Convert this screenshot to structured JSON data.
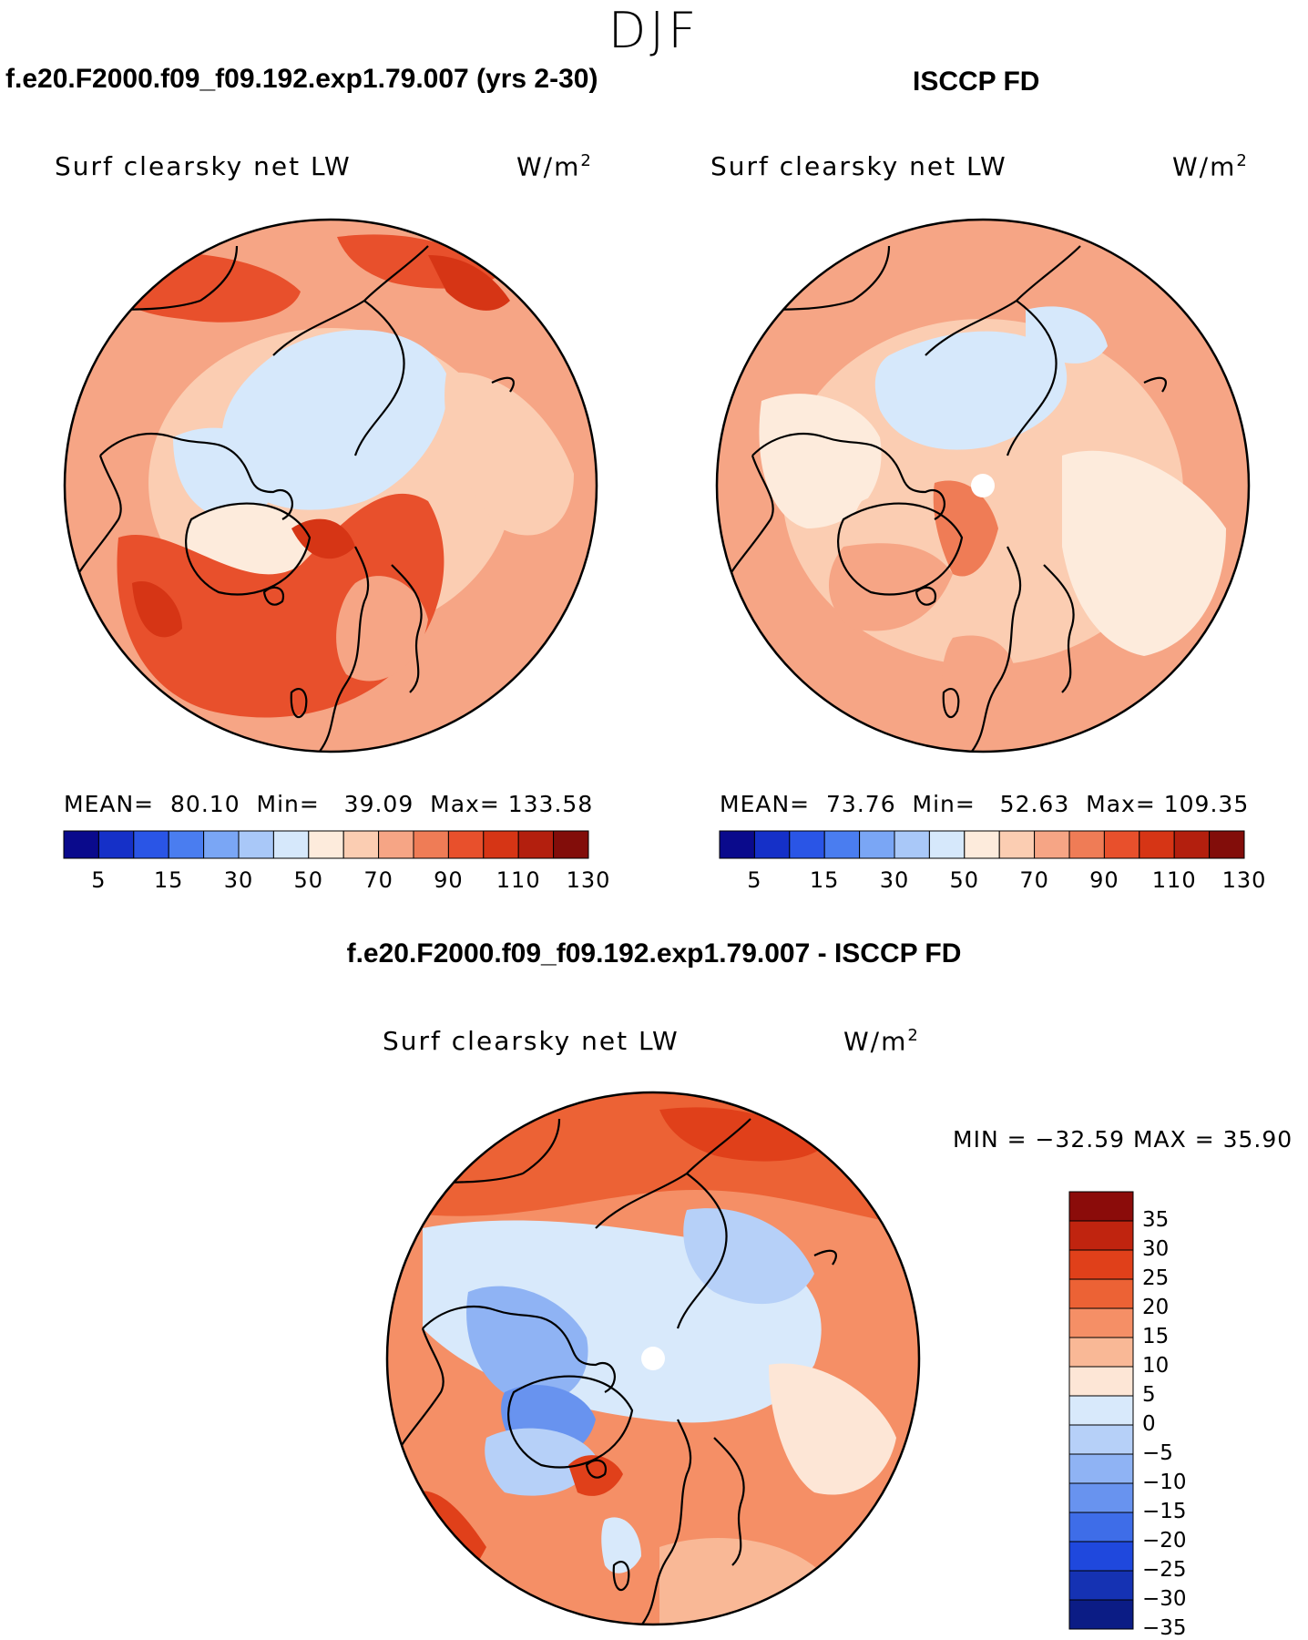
{
  "season": "DJF",
  "panels": [
    {
      "id": "model",
      "title": "f.e20.F2000.f09_f09.192.exp1.79.007 (yrs 2-30)",
      "variable": "Surf clearsky net LW",
      "units_base": "W/m",
      "units_exp": "2",
      "mean_label": "MEAN=",
      "mean_value": "80.10",
      "min_label": "Min=",
      "min_value": "39.09",
      "max_label": "Max=",
      "max_value": "133.58"
    },
    {
      "id": "obs",
      "title": "ISCCP FD",
      "variable": "Surf clearsky net LW",
      "units_base": "W/m",
      "units_exp": "2",
      "mean_label": "MEAN=",
      "mean_value": "73.76",
      "min_label": "Min=",
      "min_value": "52.63",
      "max_label": "Max=",
      "max_value": "109.35"
    }
  ],
  "field_colorbar": {
    "colors": [
      "#0a0a8c",
      "#1530c8",
      "#2a55e6",
      "#4a7df0",
      "#7aa6f5",
      "#a9c8f8",
      "#d6e8fb",
      "#fdebdc",
      "#fbcdb2",
      "#f6a585",
      "#ef7c56",
      "#e8502c",
      "#d63515",
      "#b31f0e",
      "#820d0a"
    ],
    "tick_labels": [
      "5",
      "15",
      "30",
      "50",
      "70",
      "90",
      "110",
      "130"
    ]
  },
  "diff_panel": {
    "title": "f.e20.F2000.f09_f09.192.exp1.79.007 - ISCCP FD",
    "variable": "Surf clearsky net LW",
    "units_base": "W/m",
    "units_exp": "2",
    "min_max_text": "MIN = −32.59 MAX =   35.90",
    "colorbar_labels": [
      "35",
      "30",
      "25",
      "20",
      "15",
      "10",
      "5",
      "0",
      "−5",
      "−10",
      "−15",
      "−20",
      "−25",
      "−30",
      "−35"
    ],
    "colorbar_colors": [
      "#8b0c0a",
      "#c0240f",
      "#e0401a",
      "#ec6235",
      "#f58f66",
      "#f9b896",
      "#fde6d6",
      "#d8e9fb",
      "#b6d0f8",
      "#8fb3f4",
      "#6893ef",
      "#3e6de8",
      "#1f48dd",
      "#1532b3",
      "#0b1c85"
    ]
  },
  "icons": {
    "pole_marker": "north-pole-marker",
    "coastline": "coastline-outline"
  }
}
